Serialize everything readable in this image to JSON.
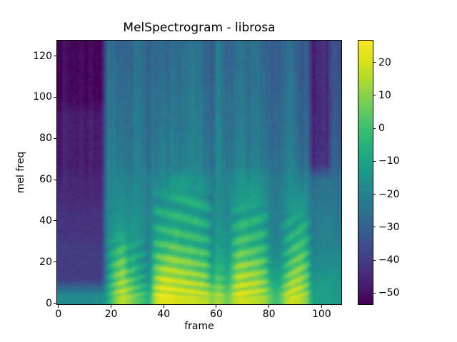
{
  "figure": {
    "background": "#ffffff",
    "text_color": "#000000"
  },
  "chart_data": {
    "type": "heatmap",
    "title": "MelSpectrogram - librosa",
    "xlabel": "frame",
    "ylabel": "mel freq",
    "x_ticks": [
      0,
      20,
      40,
      60,
      80,
      100
    ],
    "x_tick_labels": [
      "0",
      "20",
      "40",
      "60",
      "80",
      "100"
    ],
    "y_ticks": [
      0,
      20,
      40,
      60,
      80,
      100,
      120
    ],
    "y_tick_labels": [
      "0",
      "20",
      "40",
      "60",
      "80",
      "100",
      "120"
    ],
    "x_range": [
      -0.5,
      107.5
    ],
    "y_range": [
      -0.5,
      127.5
    ],
    "n_frames": 108,
    "n_mels": 128,
    "colormap": "viridis",
    "colorbar": {
      "vmin": -53.4,
      "vmax": 26.6,
      "ticks": [
        20,
        10,
        0,
        -10,
        -20,
        -30,
        -40,
        -50
      ],
      "tick_labels": [
        "20",
        "10",
        "0",
        "−10",
        "−20",
        "−30",
        "−40",
        "−50"
      ]
    },
    "values_db_grid": {
      "description": "Coarse estimate of the spectrogram in dB. 16 rows (bottom to top, 8 mel bins each) x 54 columns (2 frames each). Each char maps linearly: index in alphabet -> dB = -54 + index*80/35.",
      "alphabet": "0123456789abcdefghijklmnopqrstuvwxyz",
      "col_frames": 2,
      "row_mels": 8,
      "origin": "bottom-left",
      "rows": [
        "gggggggggjptvtrpnluxxxwwwwvvususquwwvvutqnpuwvusjjjjii",
        "666666666hnrtpnljhruvvuuttssqlpnlruuttsqljkpstsphiiiih",
        "666666666glprlljhfnqrssrrqppnilkiorrqqpnihhloqqnfggggg",
        "666666666gjlnjjihelnnoonnnmmlgjihloonnmlgfgjmnnlefffff",
        "555555555ghjjhihgejkllmllllkjfihgjlmllljfefikkljdeffee",
        "555555555gghhghhgeijjkkkkkkjifhgfijkjkjifeehiijhdeeeed",
        "444444444fgghfggfdhhiijjjjjihehffhiiijihedeghhhgcddddc",
        "444444444ffggeffedgghhiiiihhgegfeghhghhgeddfggffcccdcc",
        "333333333efefcefdbeffefdeggedcgecefedefecbcefecc4555b9",
        "333333333eeeecefcbeefefdegfedcgdceeeceedbbbeedcb4545b9",
        "333333333dedebdecadeeeecdffdcbgdbdedcdedbabdedbb4444a8",
        "333333333ddddbdecaddedecdffdcbfcbdddcdecbabddcbb4444a8",
        "111111111ddcdbdebadddddcdfedcbfcbdddbddcaaaddcba344498",
        "111111111cdccbcdbacddcdbceecbafcacdcbcdca9acdcaa344498",
        "111111111ccccacdb9ccccdbceecbafbacccbcdba9accbaa344497",
        "111111111ccbcacdb9cccccbcedcbafbacccbccba9accbaa344497"
      ]
    },
    "texture": {
      "combs": [
        {
          "f0": 18,
          "f1": 34,
          "mel_max": 34,
          "amp_db": 4.5,
          "slant": 0.5
        },
        {
          "f0": 36,
          "f1": 58,
          "mel_max": 56,
          "amp_db": 6.0,
          "slant": -0.25
        },
        {
          "f0": 59,
          "f1": 64,
          "mel_max": 20,
          "amp_db": 3.0,
          "slant": 0.0
        },
        {
          "f0": 66,
          "f1": 80,
          "mel_max": 50,
          "amp_db": 5.5,
          "slant": 0.3
        },
        {
          "f0": 85,
          "f1": 96,
          "mel_max": 46,
          "amp_db": 5.0,
          "slant": 0.8
        }
      ],
      "column_noise_db": 2.5,
      "pixel_noise_db": 1.4,
      "bottom_strip_min_db": -20,
      "bottom_strip_mels": 3
    },
    "viridis_stops": [
      "#440154",
      "#481a6c",
      "#472f7d",
      "#414487",
      "#39568c",
      "#31688e",
      "#2a788e",
      "#23888e",
      "#1e988a",
      "#1fa884",
      "#2eb679",
      "#4ac26d",
      "#6dcd59",
      "#95d545",
      "#bddf26",
      "#dfe318",
      "#fde725"
    ]
  }
}
